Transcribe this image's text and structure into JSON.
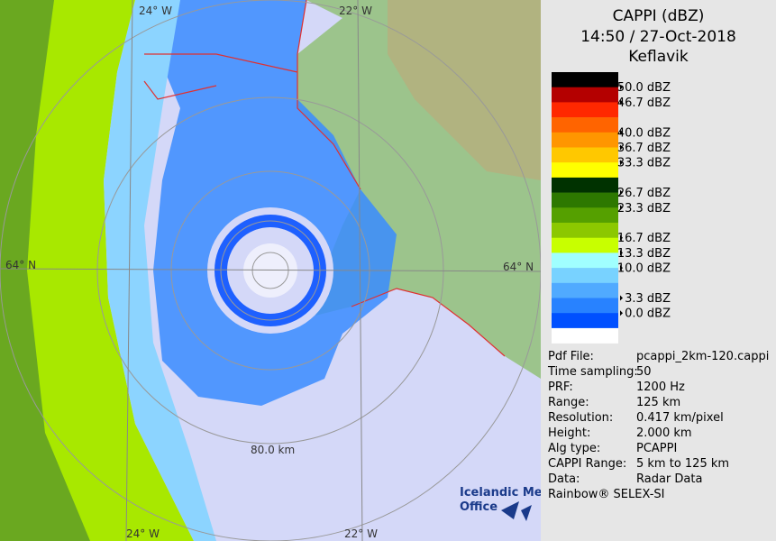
{
  "title": "CAPPI (dBZ)",
  "subtitle": "14:50 / 27-Oct-2018",
  "station": "Keflavik",
  "legend": {
    "colors": [
      "#000000",
      "#b40000",
      "#ff2800",
      "#ff6400",
      "#ff9600",
      "#ffc800",
      "#ffff00",
      "#003200",
      "#2d7800",
      "#55a000",
      "#8cc800",
      "#c8ff00",
      "#a0ffff",
      "#78d2ff",
      "#50aaff",
      "#2882ff",
      "#0050ff",
      "#ffffff"
    ],
    "labels": [
      "50.0 dBZ",
      "46.7 dBZ",
      "40.0 dBZ",
      "36.7 dBZ",
      "33.3 dBZ",
      "26.7 dBZ",
      "23.3 dBZ",
      "16.7 dBZ",
      "13.3 dBZ",
      "10.0 dBZ",
      "3.3 dBZ",
      "0.0 dBZ"
    ]
  },
  "info": [
    [
      "Pdf File:",
      "pcappi_2km-120.cappi"
    ],
    [
      "Time sampling:",
      "50"
    ],
    [
      "PRF:",
      "1200 Hz"
    ],
    [
      "Range:",
      "125 km"
    ],
    [
      "Resolution:",
      "0.417 km/pixel"
    ],
    [
      "Height:",
      "2.000 km"
    ],
    [
      "Alg type:",
      "PCAPPI"
    ],
    [
      "CAPPI Range:",
      "5 km to 125 km"
    ],
    [
      "Data:",
      "Radar Data"
    ]
  ],
  "footer": "Rainbow® SELEX-SI",
  "map": {
    "lon_labels": [
      "24° W",
      "22° W",
      "24° W",
      "22° W"
    ],
    "lat_labels": [
      "64° N",
      "64° N"
    ],
    "range_label": "80.0 km",
    "logo": [
      "Icelandic Met",
      "Office"
    ]
  }
}
